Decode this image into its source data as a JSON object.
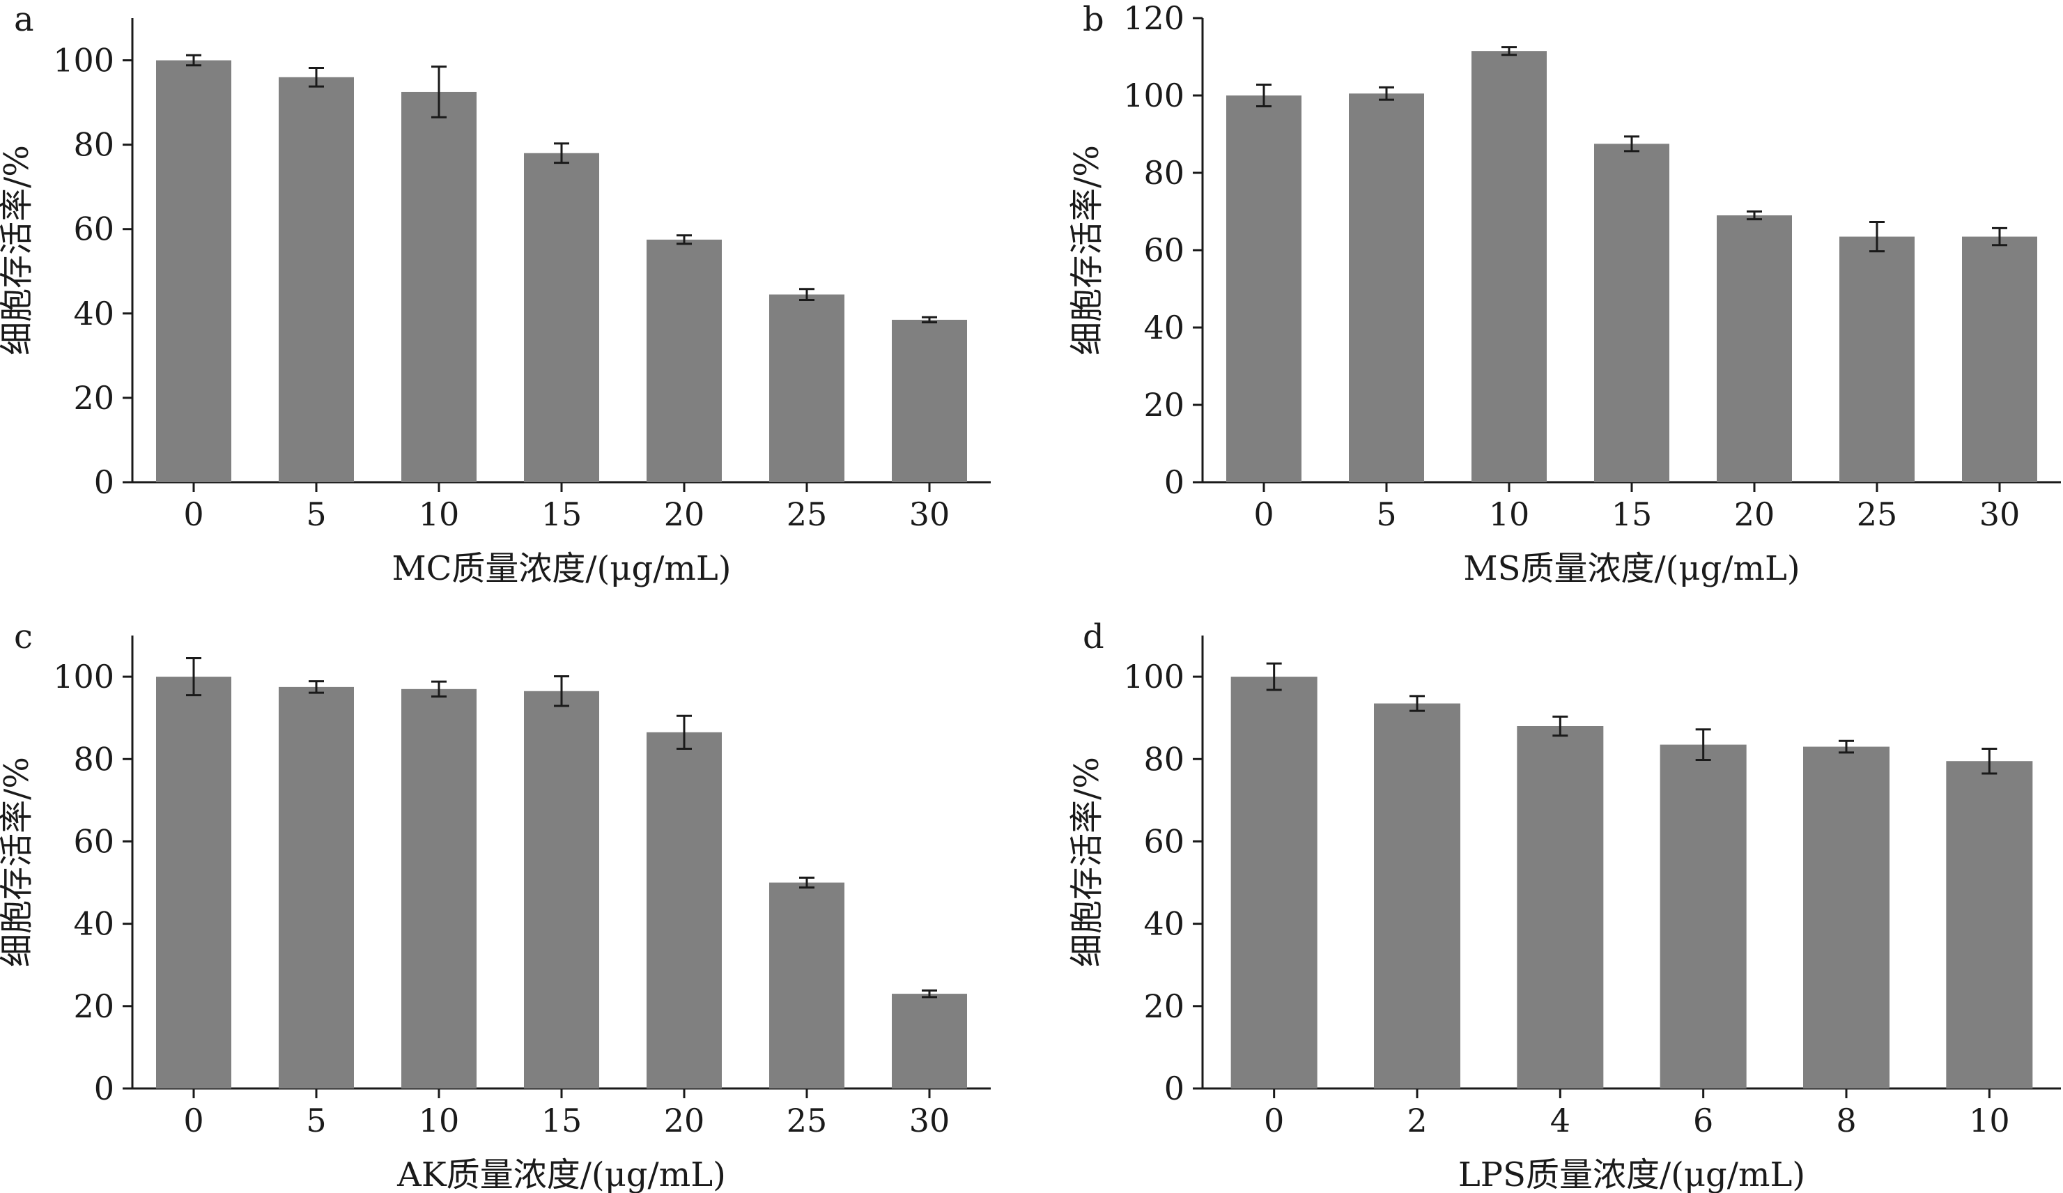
{
  "chart_data": [
    {
      "type": "bar",
      "panel": "a",
      "xlabel": "MC质量浓度/(μg/mL)",
      "ylabel": "细胞存活率/%",
      "categories": [
        "0",
        "5",
        "10",
        "15",
        "20",
        "25",
        "30"
      ],
      "values": [
        100,
        96,
        92.5,
        78,
        57.5,
        44.5,
        38.5
      ],
      "errors": [
        1.2,
        2.2,
        6.0,
        2.3,
        1.0,
        1.3,
        0.6
      ],
      "ylim": [
        0,
        110
      ],
      "yticks": [
        0,
        20,
        40,
        60,
        80,
        100
      ],
      "bar_color": "#808080",
      "grid": false
    },
    {
      "type": "bar",
      "panel": "b",
      "xlabel": "MS质量浓度/(μg/mL)",
      "ylabel": "细胞存活率/%",
      "categories": [
        "0",
        "5",
        "10",
        "15",
        "20",
        "25",
        "30"
      ],
      "values": [
        100,
        100.5,
        111.5,
        87.5,
        69,
        63.5,
        63.5
      ],
      "errors": [
        2.8,
        1.6,
        1.0,
        1.9,
        1.0,
        3.8,
        2.2
      ],
      "ylim": [
        0,
        120
      ],
      "yticks": [
        0,
        20,
        40,
        60,
        80,
        100,
        120
      ],
      "bar_color": "#808080",
      "grid": false
    },
    {
      "type": "bar",
      "panel": "c",
      "xlabel": "AK质量浓度/(μg/mL)",
      "ylabel": "细胞存活率/%",
      "categories": [
        "0",
        "5",
        "10",
        "15",
        "20",
        "25",
        "30"
      ],
      "values": [
        100,
        97.5,
        97,
        96.5,
        86.5,
        50,
        23
      ],
      "errors": [
        4.5,
        1.4,
        1.8,
        3.6,
        4.0,
        1.2,
        0.8
      ],
      "ylim": [
        0,
        110
      ],
      "yticks": [
        0,
        20,
        40,
        60,
        80,
        100
      ],
      "bar_color": "#808080",
      "grid": false
    },
    {
      "type": "bar",
      "panel": "d",
      "xlabel": "LPS质量浓度/(μg/mL)",
      "ylabel": "细胞存活率/%",
      "categories": [
        "0",
        "2",
        "4",
        "6",
        "8",
        "10"
      ],
      "values": [
        100,
        93.5,
        88,
        83.5,
        83,
        79.5
      ],
      "errors": [
        3.2,
        1.8,
        2.3,
        3.7,
        1.4,
        3.0
      ],
      "ylim": [
        0,
        110
      ],
      "yticks": [
        0,
        20,
        40,
        60,
        80,
        100
      ],
      "bar_color": "#808080",
      "grid": false
    }
  ]
}
